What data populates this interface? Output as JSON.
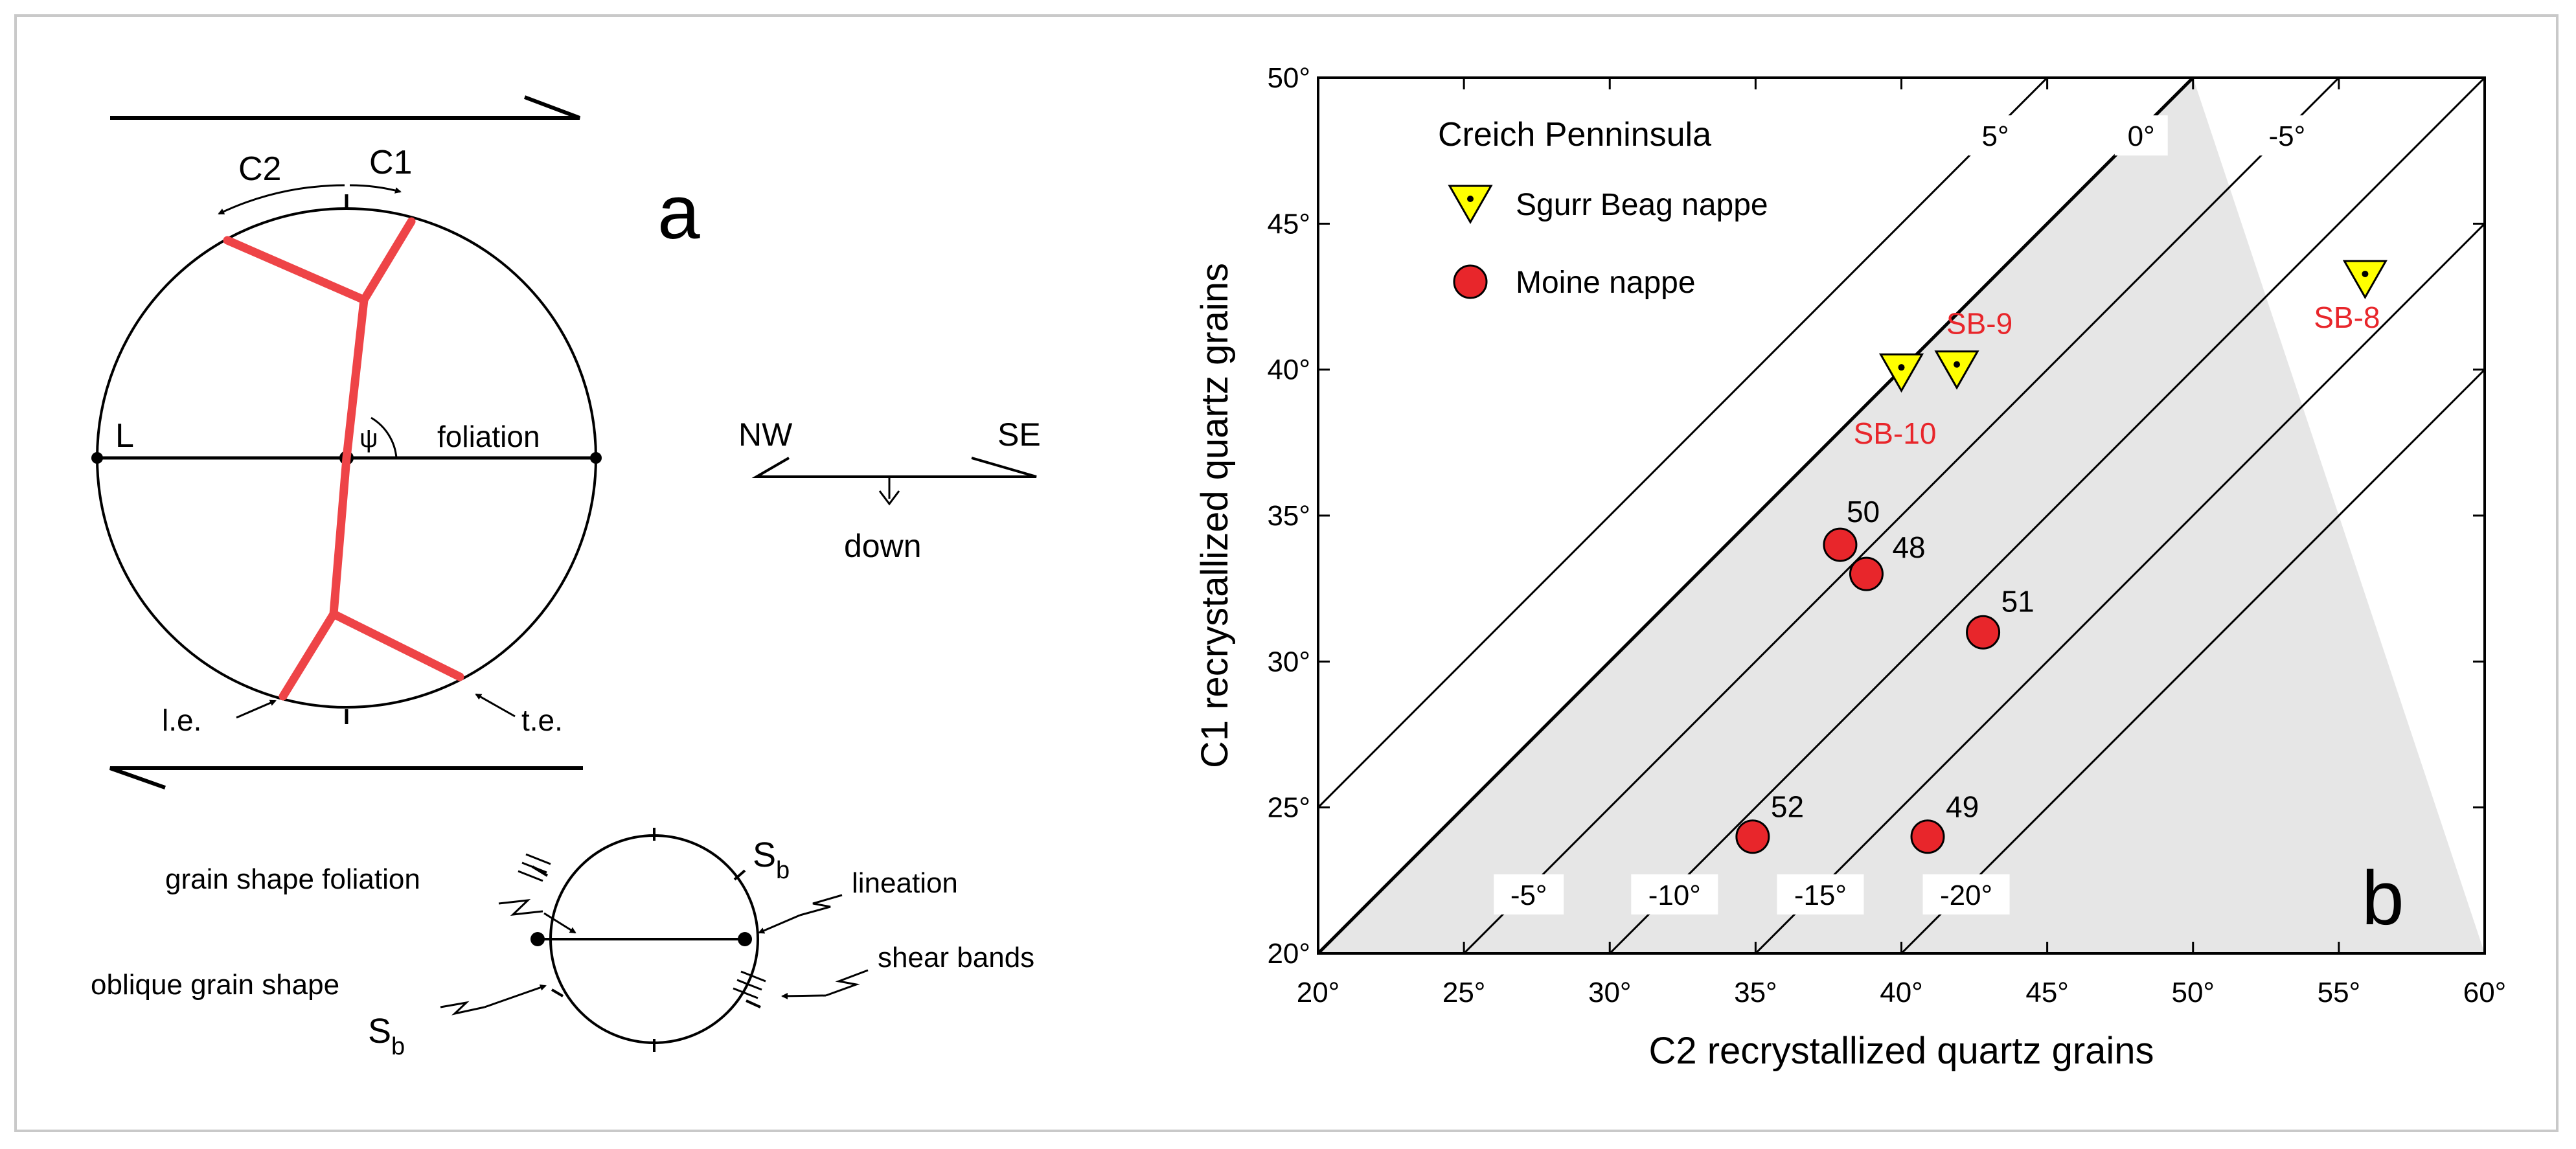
{
  "panel_a": {
    "letter": "a",
    "c2_label": "C2",
    "c1_label": "C1",
    "l_label": "L",
    "psi_label": "ψ",
    "foliation_label": "foliation",
    "le_label": "l.e.",
    "te_label": "t.e.",
    "nw_label": "NW",
    "se_label": "SE",
    "down_label": "down",
    "grain_shape_foliation_label": "grain shape foliation",
    "oblique_grain_shape_label": "oblique grain shape",
    "lineation_label": "lineation",
    "shear_bands_label": "shear bands",
    "sb_label": "S",
    "sb_sub": "b",
    "colors": {
      "boundary": "#ee4447"
    }
  },
  "chart_data": {
    "type": "scatter",
    "panel_letter": "b",
    "xlabel": "C2 recrystallized quartz grains",
    "ylabel": "C1 recrystallized quartz grains",
    "xlim": [
      20,
      60
    ],
    "ylim": [
      20,
      50
    ],
    "xticks": [
      20,
      25,
      30,
      35,
      40,
      45,
      50,
      55,
      60
    ],
    "yticks": [
      20,
      25,
      30,
      35,
      40,
      45,
      50
    ],
    "tick_suffix": "°",
    "legend": {
      "title": "Creich Penninsula",
      "entries": [
        {
          "label": "Sgurr Beag nappe",
          "marker": "triangle-down",
          "color": "#ffff00"
        },
        {
          "label": "Moine nappe",
          "marker": "circle",
          "color": "#e8262b"
        }
      ]
    },
    "reference_lines": [
      {
        "offset": 5,
        "label": "5°"
      },
      {
        "offset": 0,
        "label": "0°"
      },
      {
        "offset": -5,
        "label": "-5°"
      },
      {
        "offset": -5,
        "label": "-5°",
        "label_position": "bottom"
      },
      {
        "offset": -10,
        "label": "-10°"
      },
      {
        "offset": -15,
        "label": "-15°"
      },
      {
        "offset": -20,
        "label": "-20°"
      }
    ],
    "series": [
      {
        "name": "Sgurr Beag nappe",
        "marker": "triangle-down",
        "points": [
          {
            "x": 40,
            "y": 39.9,
            "label": "SB-10"
          },
          {
            "x": 41.9,
            "y": 40.0,
            "label": "SB-9"
          },
          {
            "x": 55.9,
            "y": 43.1,
            "label": "SB-8"
          }
        ]
      },
      {
        "name": "Moine nappe",
        "marker": "circle",
        "points": [
          {
            "x": 37.9,
            "y": 34.0,
            "label": "50"
          },
          {
            "x": 38.8,
            "y": 33.0,
            "label": "48"
          },
          {
            "x": 42.8,
            "y": 31.0,
            "label": "51"
          },
          {
            "x": 34.9,
            "y": 24.0,
            "label": "52"
          },
          {
            "x": 40.9,
            "y": 24.0,
            "label": "49"
          }
        ]
      }
    ],
    "shaded_region": "below 0° line",
    "colors": {
      "shade": "#e6e6e6",
      "marker_label": "#e8262b"
    }
  }
}
